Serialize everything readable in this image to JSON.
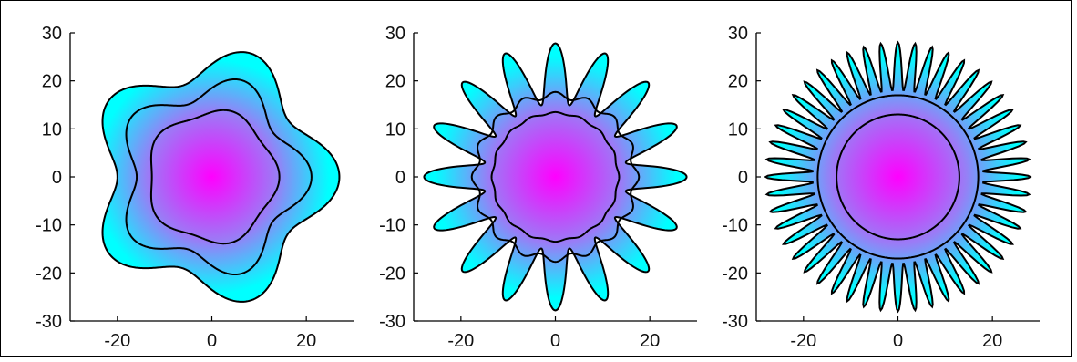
{
  "figure": {
    "colors": {
      "outer": "#00ffff",
      "inner": "#ff00ff",
      "contour": "#000000",
      "axis": "#000000"
    }
  },
  "chart_data": [
    {
      "type": "contour",
      "title": "",
      "xlabel": "",
      "ylabel": "",
      "xlim": [
        -30,
        30
      ],
      "ylim": [
        -30,
        30
      ],
      "xticks": [
        -20,
        0,
        20
      ],
      "yticks": [
        30,
        20,
        10,
        0,
        -10,
        -20,
        -30
      ],
      "xtick_labels": [
        "-20",
        "0",
        "20"
      ],
      "ytick_labels": [
        "30",
        "20",
        "10",
        "0",
        "-10",
        "-20",
        "-30"
      ],
      "lobes": 5,
      "levels": [
        {
          "mean_radius": 23.5,
          "amplitude": 3.5
        },
        {
          "mean_radius": 18.5,
          "amplitude": 2.6
        },
        {
          "mean_radius": 13.5,
          "amplitude": 0.8
        }
      ],
      "grid": false
    },
    {
      "type": "contour",
      "title": "",
      "xlabel": "",
      "ylabel": "",
      "xlim": [
        -30,
        30
      ],
      "ylim": [
        -30,
        30
      ],
      "xticks": [
        -20,
        0,
        20
      ],
      "yticks": [
        30,
        20,
        10,
        0,
        -10,
        -20,
        -30
      ],
      "xtick_labels": [
        "-20",
        "0",
        "20"
      ],
      "ytick_labels": [
        "30",
        "20",
        "10",
        "0",
        "-10",
        "-20",
        "-30"
      ],
      "lobes": 16,
      "levels": [
        {
          "mean_radius": 21.5,
          "amplitude": 6.3
        },
        {
          "mean_radius": 17.0,
          "amplitude": 0.7
        },
        {
          "mean_radius": 13.3,
          "amplitude": 0.2
        }
      ],
      "grid": false
    },
    {
      "type": "contour",
      "title": "",
      "xlabel": "",
      "ylabel": "",
      "xlim": [
        -30,
        30
      ],
      "ylim": [
        -30,
        30
      ],
      "xticks": [
        -20,
        0,
        20
      ],
      "yticks": [
        30,
        20,
        10,
        0,
        -10,
        -20,
        -30
      ],
      "xtick_labels": [
        "-20",
        "0",
        "20"
      ],
      "ytick_labels": [
        "30",
        "20",
        "10",
        "0",
        "-10",
        "-20",
        "-30"
      ],
      "lobes": 48,
      "levels": [
        {
          "mean_radius": 23.0,
          "amplitude": 5.0
        },
        {
          "mean_radius": 17.0,
          "amplitude": 0.0
        },
        {
          "mean_radius": 13.0,
          "amplitude": 0.0
        }
      ],
      "grid": false
    }
  ]
}
